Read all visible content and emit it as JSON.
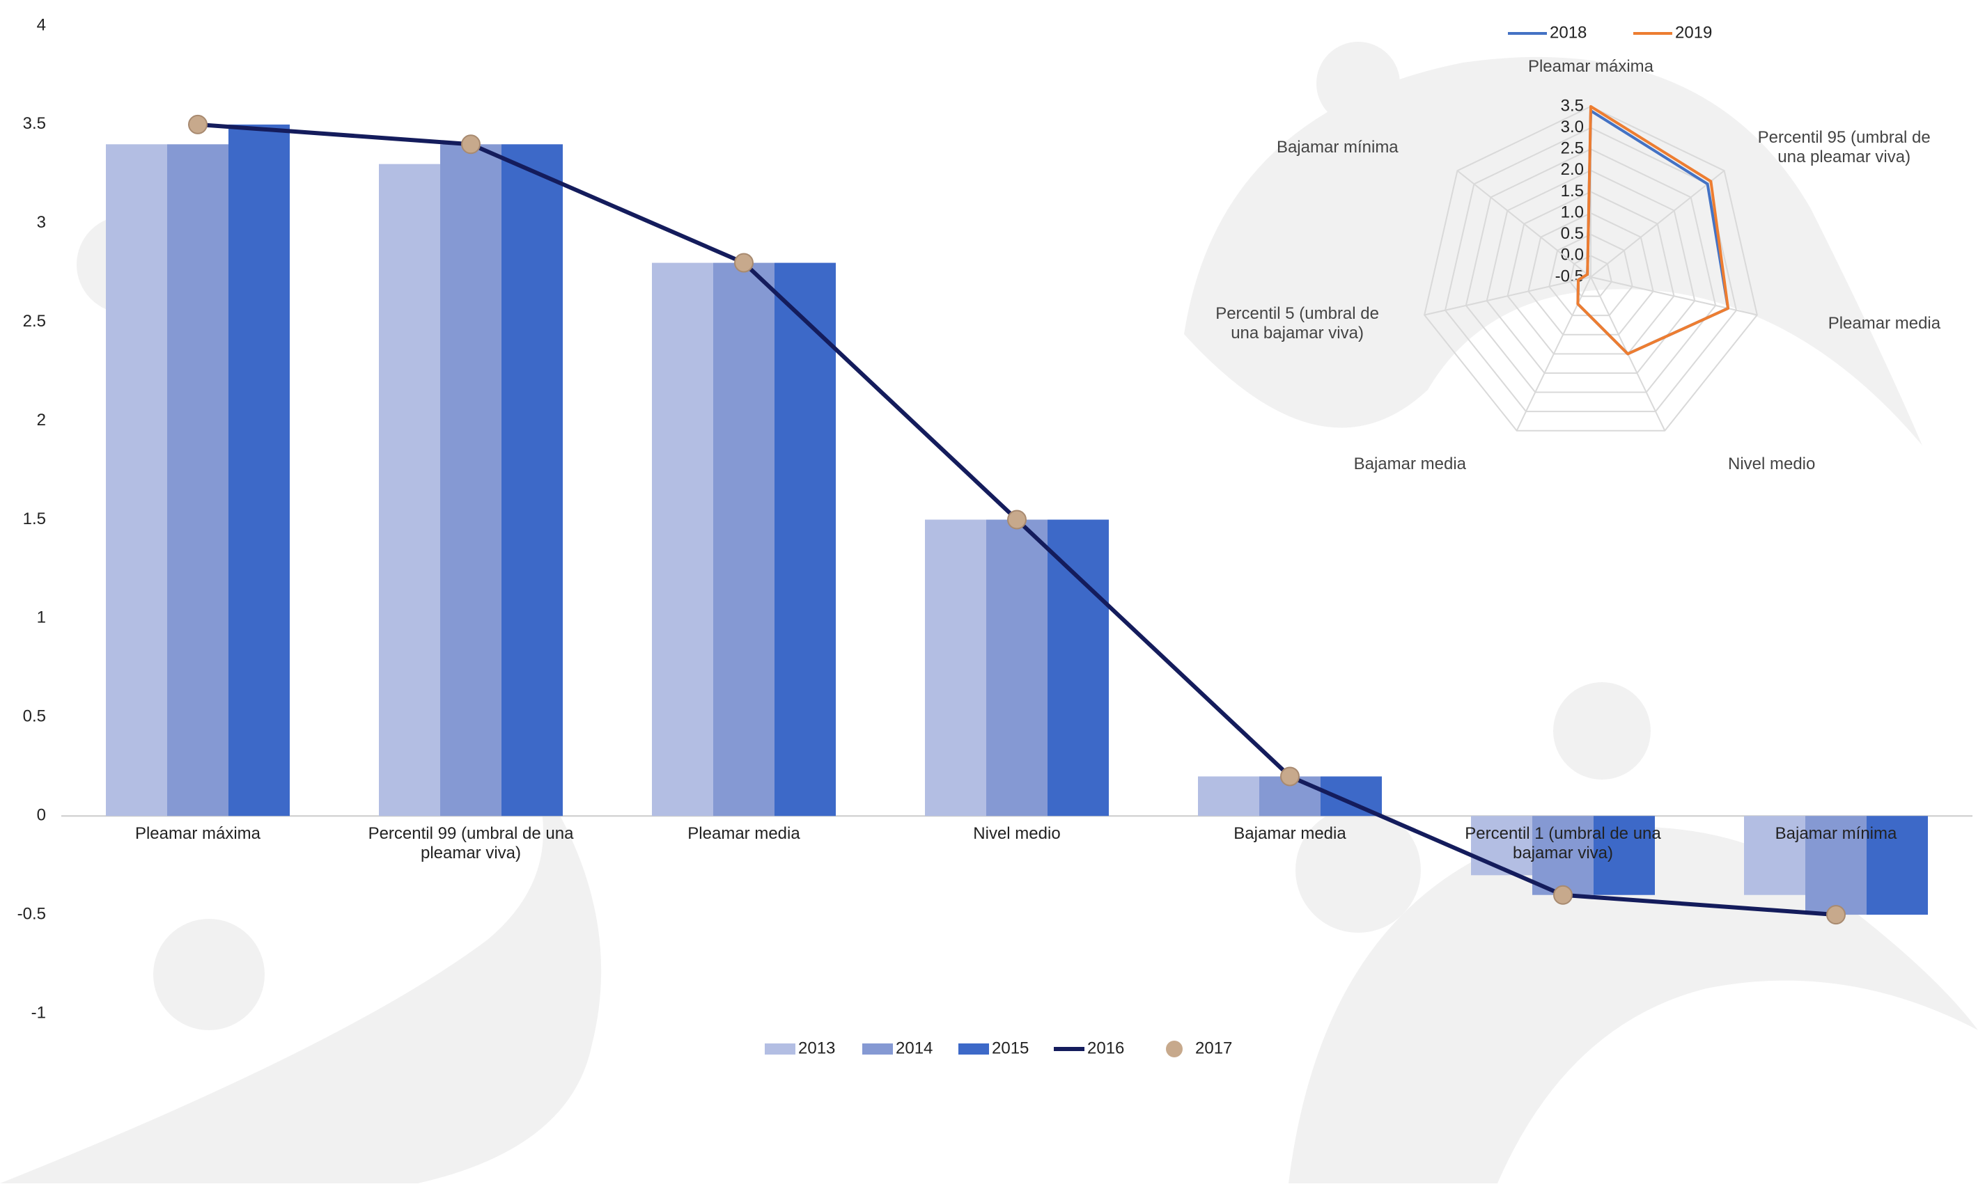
{
  "chart_data": [
    {
      "type": "bar",
      "categories": [
        "Pleamar máxima",
        "Percentil 99 (umbral de una pleamar viva)",
        "Pleamar media",
        "Nivel medio",
        "Bajamar media",
        "Percentil 1 (umbral de una bajamar viva)",
        "Bajamar mínima"
      ],
      "series": [
        {
          "name": "2013",
          "color": "#b3bee3",
          "values": [
            3.4,
            3.3,
            2.8,
            1.5,
            0.2,
            -0.3,
            -0.4
          ]
        },
        {
          "name": "2014",
          "color": "#8599d3",
          "values": [
            3.4,
            3.4,
            2.8,
            1.5,
            0.2,
            -0.4,
            -0.5
          ]
        },
        {
          "name": "2015",
          "color": "#3d69c8",
          "values": [
            3.5,
            3.4,
            2.8,
            1.5,
            0.2,
            -0.4,
            -0.5
          ]
        },
        {
          "name": "2016",
          "type": "line",
          "color": "#141c5c",
          "values": [
            3.5,
            3.4,
            2.8,
            1.5,
            0.2,
            -0.4,
            -0.5
          ]
        },
        {
          "name": "2017",
          "type": "scatter",
          "color": "#c7a98c",
          "values": [
            3.5,
            3.4,
            2.8,
            1.5,
            0.2,
            -0.4,
            -0.5
          ]
        }
      ],
      "ylim": [
        -1,
        4
      ],
      "yticks": [
        -1,
        -0.5,
        0,
        0.5,
        1,
        1.5,
        2,
        2.5,
        3,
        3.5,
        4
      ],
      "grid": false,
      "legend": "bottom"
    },
    {
      "type": "radar",
      "categories": [
        "Pleamar máxima",
        "Percentil 95 (umbral de una pleamar viva)",
        "Pleamar media",
        "Nivel medio",
        "Bajamar media",
        "Percentil 5 (umbral de una bajamar viva)",
        "Bajamar mínima"
      ],
      "series": [
        {
          "name": "2018",
          "color": "#4472c4",
          "values": [
            3.4,
            3.0,
            2.8,
            1.5,
            0.2,
            -0.2,
            -0.4
          ]
        },
        {
          "name": "2019",
          "color": "#ed7d31",
          "values": [
            3.5,
            3.1,
            2.8,
            1.5,
            0.2,
            -0.2,
            -0.4
          ]
        }
      ],
      "rlim": [
        -0.5,
        3.5
      ],
      "rticks": [
        -0.5,
        {
          "value": 0,
          "label": "0.0"
        },
        0.5,
        {
          "value": 1,
          "label": "1.0"
        },
        1.5,
        {
          "value": 2,
          "label": "2.0"
        },
        2.5,
        {
          "value": 3,
          "label": "3.0"
        },
        3.5
      ],
      "legend": "top"
    }
  ]
}
